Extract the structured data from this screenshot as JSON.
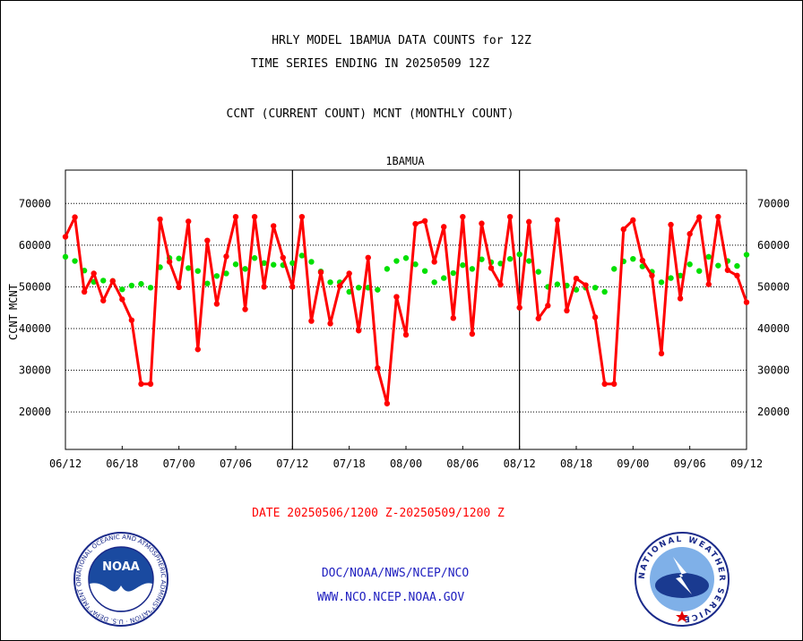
{
  "title_line1": "HRLY MODEL 1BAMUA DATA COUNTS for 12Z",
  "title_line2": "TIME SERIES ENDING IN 20250509 12Z",
  "subtitle": "CCNT (CURRENT COUNT) MCNT (MONTHLY COUNT)",
  "date_range": "DATE 20250506/1200 Z-20250509/1200 Z",
  "footer_org": "DOC/NOAA/NWS/NCEP/NCO",
  "footer_url": "WWW.NCO.NCEP.NOAA.GOV",
  "logos": {
    "left": {
      "text": "NOAA",
      "ring_text": "NATIONAL OCEANIC AND ATMOSPHERIC ADMINISTRATION · U.S. DEPARTMENT OF COMMERCE"
    },
    "right": {
      "ring_text": "NATIONAL WEATHER SERVICE"
    }
  },
  "chart_data": {
    "type": "line",
    "title": "1BAMUA",
    "ylabel_left": "CCNT",
    "ylabel_left2": "MCNT",
    "x_tick_labels": [
      "06/12",
      "06/18",
      "07/00",
      "07/06",
      "07/12",
      "07/18",
      "08/00",
      "08/06",
      "08/12",
      "08/18",
      "09/00",
      "09/06",
      "09/12"
    ],
    "y_ticks": [
      20000,
      30000,
      40000,
      50000,
      60000,
      70000
    ],
    "ylim": [
      11000,
      78000
    ],
    "grid": "horizontal-dotted",
    "day_separators": [
      "07/12",
      "08/12"
    ],
    "series": [
      {
        "name": "CCNT",
        "color": "#ff0000",
        "values": [
          62000,
          66700,
          48800,
          53200,
          46700,
          51400,
          47000,
          42000,
          26700,
          26700,
          66200,
          56000,
          49900,
          65700,
          35000,
          61100,
          45900,
          57300,
          66800,
          44600,
          66800,
          50000,
          64600,
          57000,
          50000,
          66800,
          41800,
          53500,
          41200,
          50200,
          53200,
          39500,
          57000,
          30500,
          22000,
          47600,
          38500,
          65100,
          65800,
          56000,
          64400,
          42500,
          66800,
          38700,
          65200,
          54500,
          50500,
          66800,
          45000,
          65600,
          42400,
          45500,
          66000,
          44300,
          52000,
          50400,
          42700,
          26700,
          26700,
          63800,
          66000,
          56300,
          52700,
          34000,
          64900,
          47200,
          62700,
          66700,
          50600,
          66800,
          54000,
          52700,
          46300
        ]
      },
      {
        "name": "MCNT",
        "color": "#00e000",
        "values": [
          57200,
          56200,
          53900,
          51200,
          51500,
          51400,
          49400,
          50300,
          50700,
          49800,
          54700,
          56900,
          56800,
          54500,
          53800,
          50800,
          52600,
          53200,
          55400,
          54300,
          56900,
          55700,
          55300,
          55200,
          55700,
          57500,
          56000,
          53700,
          51100,
          51100,
          48800,
          49800,
          49800,
          49300,
          54300,
          56200,
          56900,
          55400,
          53800,
          51100,
          52100,
          53300,
          55200,
          54300,
          56600,
          55900,
          55600,
          56700,
          57800,
          56200,
          53600,
          50000,
          50600,
          50300,
          49300,
          49800,
          49800,
          48800,
          54300,
          56100,
          56700,
          54900,
          53600,
          51100,
          52100,
          52700,
          55400,
          53800,
          57200,
          55100,
          56200,
          55000,
          57700
        ]
      }
    ]
  }
}
